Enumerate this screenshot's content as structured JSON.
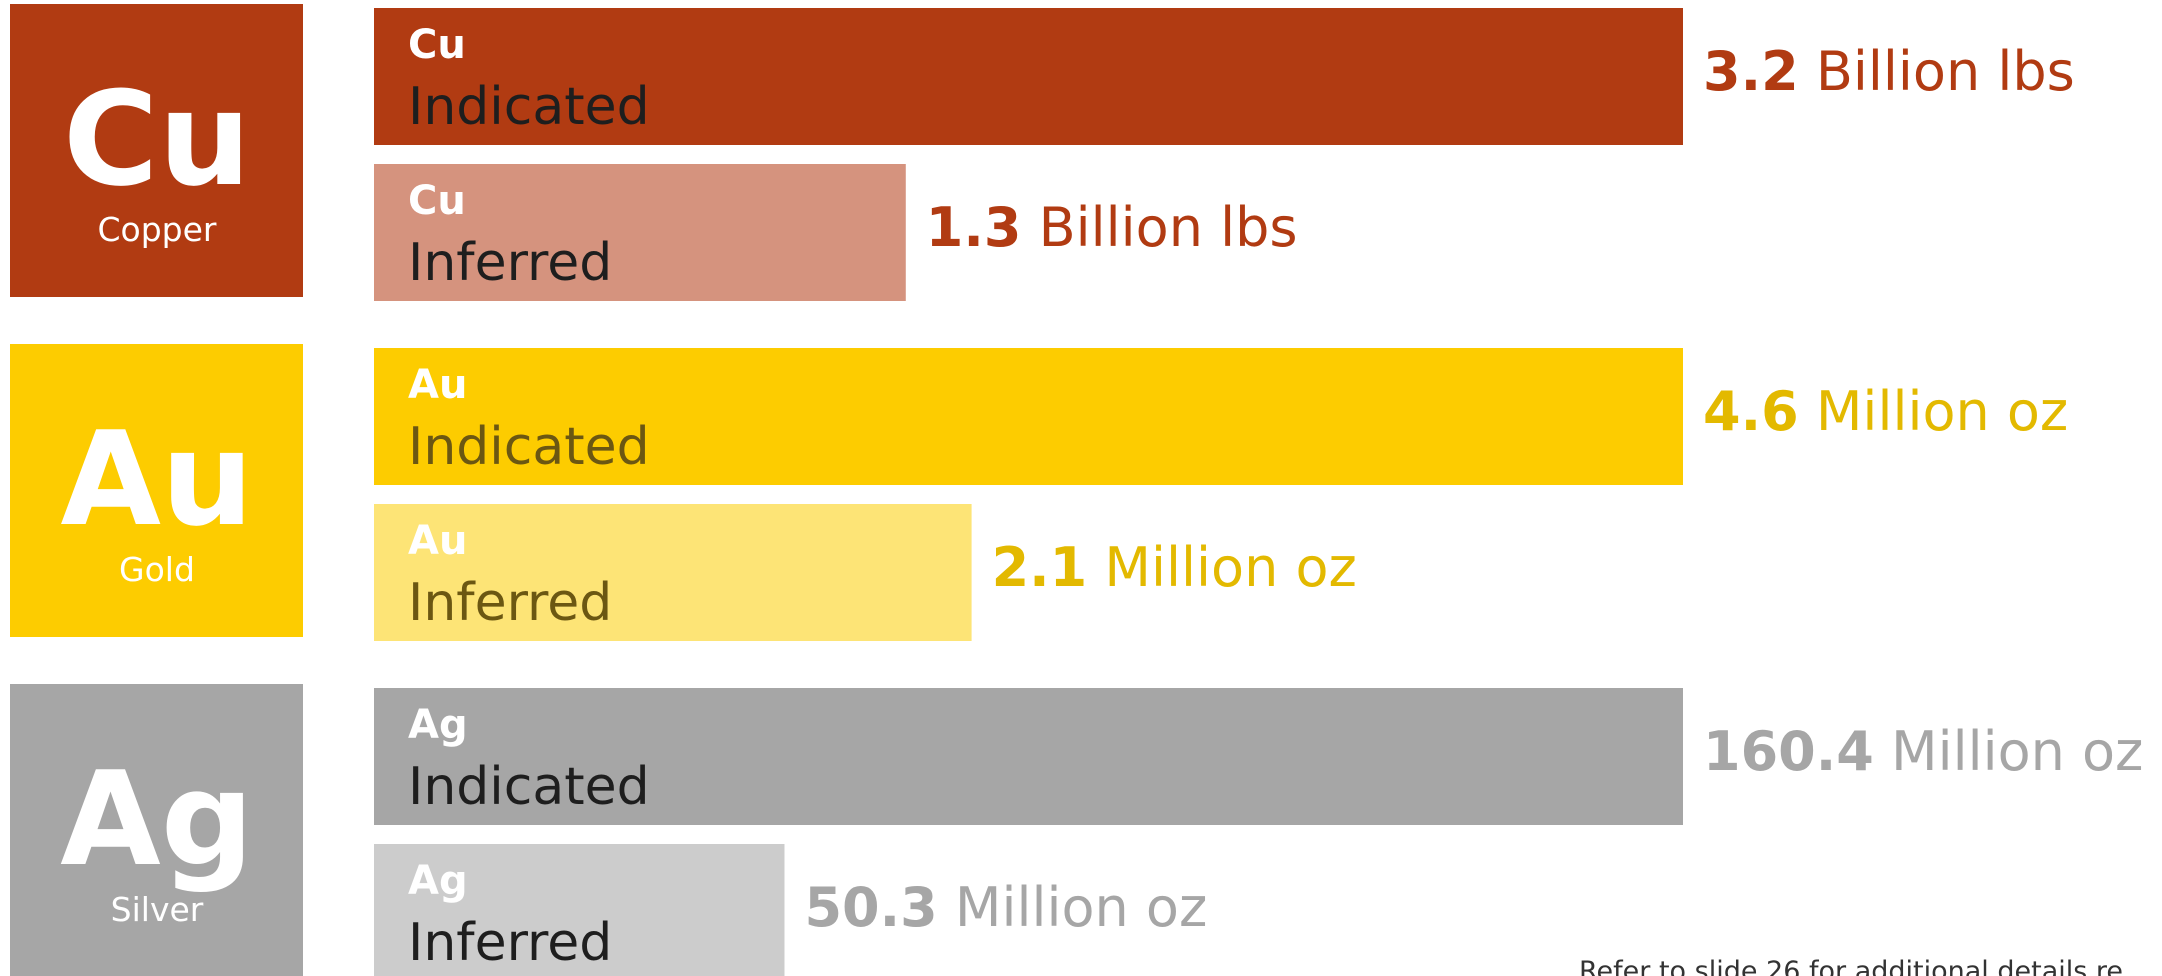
{
  "chart_data": {
    "type": "bar",
    "orientation": "horizontal",
    "groups": [
      {
        "symbol": "Cu",
        "name": "Copper",
        "unit": "Billion lbs",
        "color": "#b13b12",
        "light_color": "#d5937e",
        "text_color": "#b13b12",
        "label_color": "#1e1e1e",
        "xlim": [
          0,
          3.2
        ],
        "bars": [
          {
            "symbol": "Cu",
            "label": "Indicated",
            "value": 3.2
          },
          {
            "symbol": "Cu",
            "label": "Inferred",
            "value": 1.3
          }
        ]
      },
      {
        "symbol": "Au",
        "name": "Gold",
        "unit": "Million oz",
        "color": "#fdcc00",
        "light_color": "#fde476",
        "text_color": "#e3b900",
        "label_color": "#6b5712",
        "xlim": [
          0,
          4.6
        ],
        "bars": [
          {
            "symbol": "Au",
            "label": "Indicated",
            "value": 4.6
          },
          {
            "symbol": "Au",
            "label": "Inferred",
            "value": 2.1
          }
        ]
      },
      {
        "symbol": "Ag",
        "name": "Silver",
        "unit": "Million oz",
        "color": "#a6a6a6",
        "light_color": "#cccccc",
        "text_color": "#a6a6a6",
        "label_color": "#1e1e1e",
        "xlim": [
          0,
          160.4
        ],
        "bars": [
          {
            "symbol": "Ag",
            "label": "Indicated",
            "value": 160.4
          },
          {
            "symbol": "Ag",
            "label": "Inferred",
            "value": 50.3
          }
        ]
      }
    ],
    "footnote": "Refer to slide 26 for additional details re"
  }
}
